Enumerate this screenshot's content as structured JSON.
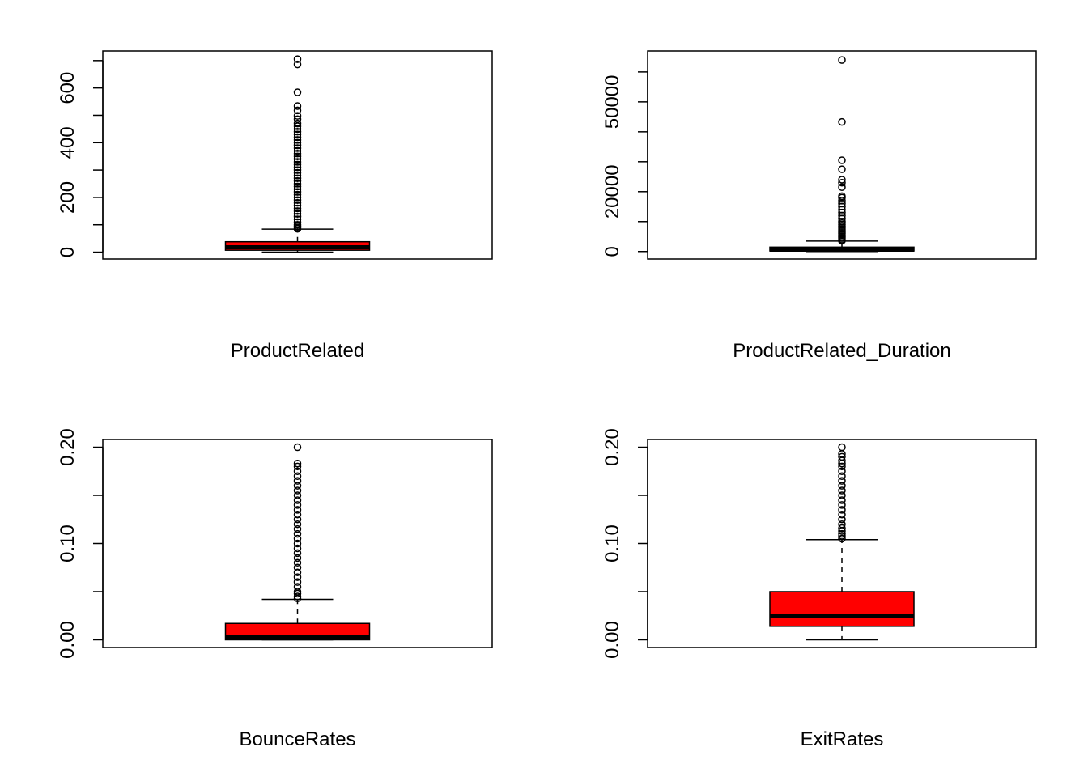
{
  "chart_data": [
    {
      "type": "boxplot",
      "xlabel": "ProductRelated",
      "ylim": [
        -25,
        735
      ],
      "yticks": [
        0,
        100,
        200,
        300,
        400,
        500,
        600,
        700
      ],
      "ytick_labels": [
        "0",
        "200",
        "400",
        "600"
      ],
      "ytick_label_values": [
        0,
        200,
        400,
        600
      ],
      "box": {
        "min": 0,
        "q1": 7,
        "median": 18,
        "q3": 38,
        "whisker_high": 84
      },
      "box_color": "#ff0000",
      "outliers": [
        85,
        90,
        95,
        100,
        110,
        120,
        130,
        140,
        150,
        160,
        170,
        180,
        190,
        200,
        210,
        220,
        230,
        240,
        250,
        260,
        270,
        280,
        290,
        300,
        310,
        320,
        330,
        340,
        350,
        360,
        370,
        380,
        390,
        400,
        410,
        420,
        430,
        440,
        450,
        460,
        470,
        486,
        498,
        518,
        534,
        584,
        686,
        705
      ]
    },
    {
      "type": "boxplot",
      "xlabel": "ProductRelated_Duration",
      "ylim": [
        -2500,
        67000
      ],
      "yticks": [
        0,
        10000,
        20000,
        30000,
        40000,
        50000,
        60000
      ],
      "ytick_labels": [
        "0",
        "20000",
        "50000"
      ],
      "ytick_label_values": [
        0,
        20000,
        50000
      ],
      "box": {
        "min": 0,
        "q1": 184,
        "median": 598,
        "q3": 1464,
        "whisker_high": 3500
      },
      "box_color": "#ff0000",
      "outliers": [
        3600,
        4000,
        4500,
        5000,
        5500,
        6000,
        6500,
        7000,
        7500,
        8000,
        8500,
        9000,
        9500,
        10000,
        11000,
        12000,
        13000,
        14000,
        15000,
        16000,
        17000,
        18000,
        18500,
        21500,
        23000,
        24000,
        27500,
        30500,
        43300,
        64000
      ]
    },
    {
      "type": "boxplot",
      "xlabel": "BounceRates",
      "ylim": [
        -0.008,
        0.208
      ],
      "yticks": [
        0.0,
        0.05,
        0.1,
        0.15,
        0.2
      ],
      "ytick_labels": [
        "0.00",
        "0.10",
        "0.20"
      ],
      "ytick_label_values": [
        0.0,
        0.1,
        0.2
      ],
      "box": {
        "min": 0,
        "q1": 0,
        "median": 0.003,
        "q3": 0.017,
        "whisker_high": 0.042
      },
      "box_color": "#ff0000",
      "outliers": [
        0.043,
        0.045,
        0.048,
        0.05,
        0.055,
        0.06,
        0.065,
        0.07,
        0.075,
        0.08,
        0.085,
        0.09,
        0.095,
        0.1,
        0.105,
        0.11,
        0.115,
        0.12,
        0.125,
        0.13,
        0.135,
        0.14,
        0.145,
        0.15,
        0.155,
        0.16,
        0.165,
        0.17,
        0.175,
        0.18,
        0.183,
        0.2
      ]
    },
    {
      "type": "boxplot",
      "xlabel": "ExitRates",
      "ylim": [
        -0.008,
        0.208
      ],
      "yticks": [
        0.0,
        0.05,
        0.1,
        0.15,
        0.2
      ],
      "ytick_labels": [
        "0.00",
        "0.10",
        "0.20"
      ],
      "ytick_label_values": [
        0.0,
        0.1,
        0.2
      ],
      "box": {
        "min": 0,
        "q1": 0.014,
        "median": 0.025,
        "q3": 0.05,
        "whisker_high": 0.104
      },
      "box_color": "#ff0000",
      "outliers": [
        0.105,
        0.108,
        0.11,
        0.113,
        0.116,
        0.12,
        0.125,
        0.13,
        0.135,
        0.14,
        0.145,
        0.15,
        0.155,
        0.16,
        0.165,
        0.17,
        0.175,
        0.18,
        0.183,
        0.186,
        0.19,
        0.193,
        0.2
      ]
    }
  ]
}
